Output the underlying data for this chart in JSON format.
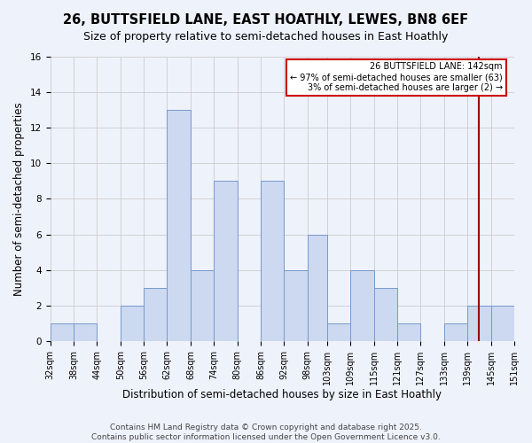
{
  "title": "26, BUTTSFIELD LANE, EAST HOATHLY, LEWES, BN8 6EF",
  "subtitle": "Size of property relative to semi-detached houses in East Hoathly",
  "xlabel": "Distribution of semi-detached houses by size in East Hoathly",
  "ylabel": "Number of semi-detached properties",
  "bin_edges": [
    32,
    38,
    44,
    50,
    56,
    62,
    68,
    74,
    80,
    86,
    92,
    98,
    103,
    109,
    115,
    121,
    127,
    133,
    139,
    145,
    151
  ],
  "heights": [
    1,
    1,
    0,
    2,
    3,
    13,
    4,
    9,
    0,
    9,
    4,
    6,
    1,
    4,
    3,
    1,
    0,
    1,
    2,
    2
  ],
  "bar_color": "#ccd9f0",
  "bar_edge_color": "#7799cc",
  "property_line_x": 142,
  "property_line_color": "#990000",
  "annotation_title": "26 BUTTSFIELD LANE: 142sqm",
  "annotation_line1": "← 97% of semi-detached houses are smaller (63)",
  "annotation_line2": "3% of semi-detached houses are larger (2) →",
  "annotation_box_facecolor": "#ffffff",
  "annotation_box_edgecolor": "#cc0000",
  "ylim": [
    0,
    16
  ],
  "yticks": [
    0,
    2,
    4,
    6,
    8,
    10,
    12,
    14,
    16
  ],
  "xlim": [
    32,
    151
  ],
  "background_color": "#eef2fb",
  "grid_color": "#cccccc",
  "title_fontsize": 10.5,
  "subtitle_fontsize": 9,
  "tick_label_fontsize": 7,
  "axis_label_fontsize": 8.5,
  "footer_fontsize": 6.5,
  "footer_line1": "Contains HM Land Registry data © Crown copyright and database right 2025.",
  "footer_line2": "Contains public sector information licensed under the Open Government Licence v3.0."
}
